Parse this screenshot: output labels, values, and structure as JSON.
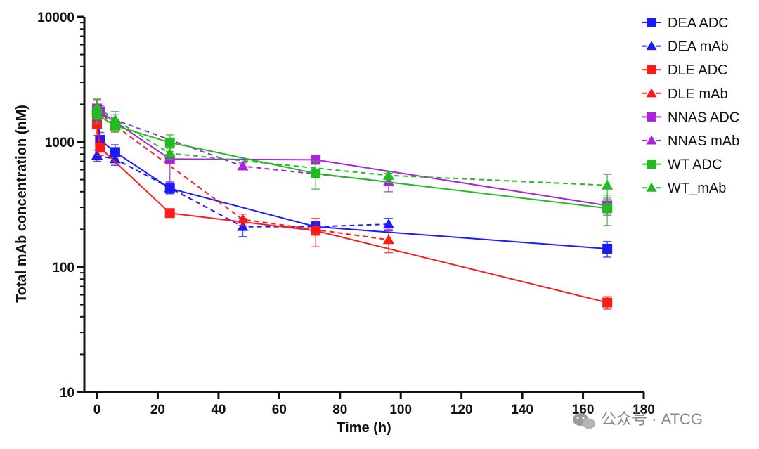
{
  "chart_data": {
    "type": "line",
    "scale_y": "log",
    "xlabel": "Time (h)",
    "ylabel": "Total mAb concentration (nM)",
    "xlim": [
      0,
      180
    ],
    "ylim": [
      10,
      10000
    ],
    "x_ticks": [
      "0",
      "20",
      "40",
      "60",
      "80",
      "100",
      "120",
      "140",
      "160",
      "180"
    ],
    "y_ticks": [
      "10",
      "100",
      "1000",
      "10000"
    ],
    "series": [
      {
        "name": "DEA ADC",
        "color": "#1a1aff",
        "marker": "square",
        "dashed": false,
        "x": [
          0,
          1,
          6,
          24,
          72,
          168
        ],
        "values": [
          1780,
          1040,
          830,
          425,
          210,
          140
        ],
        "err": [
          200,
          150,
          120,
          40,
          20,
          20
        ]
      },
      {
        "name": "DEA mAb",
        "color": "#1a1aff",
        "marker": "triangle",
        "dashed": true,
        "x": [
          0,
          6,
          24,
          48,
          72,
          96
        ],
        "values": [
          780,
          730,
          430,
          210,
          210,
          220
        ],
        "err": [
          80,
          80,
          40,
          35,
          20,
          25
        ]
      },
      {
        "name": "DLE ADC",
        "color": "#ff1a1a",
        "marker": "square",
        "dashed": false,
        "x": [
          0,
          1,
          24,
          72,
          168
        ],
        "values": [
          1380,
          900,
          270,
          195,
          52
        ],
        "err": [
          250,
          120,
          20,
          50,
          6
        ]
      },
      {
        "name": "DLE mAb",
        "color": "#ff1a1a",
        "marker": "triangle",
        "dashed": true,
        "x": [
          0,
          6,
          48,
          96
        ],
        "values": [
          1800,
          1350,
          240,
          165
        ],
        "err": [
          350,
          150,
          25,
          35
        ]
      },
      {
        "name": "NNAS ADC",
        "color": "#aa22dd",
        "marker": "square",
        "dashed": false,
        "x": [
          0,
          1,
          24,
          72,
          168
        ],
        "values": [
          1850,
          1750,
          730,
          720,
          310
        ],
        "err": [
          350,
          200,
          250,
          40,
          50
        ]
      },
      {
        "name": "NNAS mAb",
        "color": "#aa22dd",
        "marker": "triangle",
        "dashed": true,
        "x": [
          0,
          6,
          48,
          96
        ],
        "values": [
          1700,
          1500,
          640,
          480
        ],
        "err": [
          250,
          150,
          40,
          80
        ]
      },
      {
        "name": "WT ADC",
        "color": "#22bb22",
        "marker": "square",
        "dashed": false,
        "x": [
          0,
          6,
          24,
          72,
          168
        ],
        "values": [
          1650,
          1350,
          990,
          560,
          295
        ],
        "err": [
          250,
          150,
          150,
          140,
          80
        ]
      },
      {
        "name": "WT_mAb",
        "color": "#22bb22",
        "marker": "triangle",
        "dashed": true,
        "x": [
          0,
          6,
          24,
          96,
          168
        ],
        "values": [
          1900,
          1500,
          810,
          540,
          450
        ],
        "err": [
          300,
          250,
          80,
          40,
          100
        ]
      }
    ]
  },
  "watermark": {
    "text": "公众号 · ATCG"
  }
}
